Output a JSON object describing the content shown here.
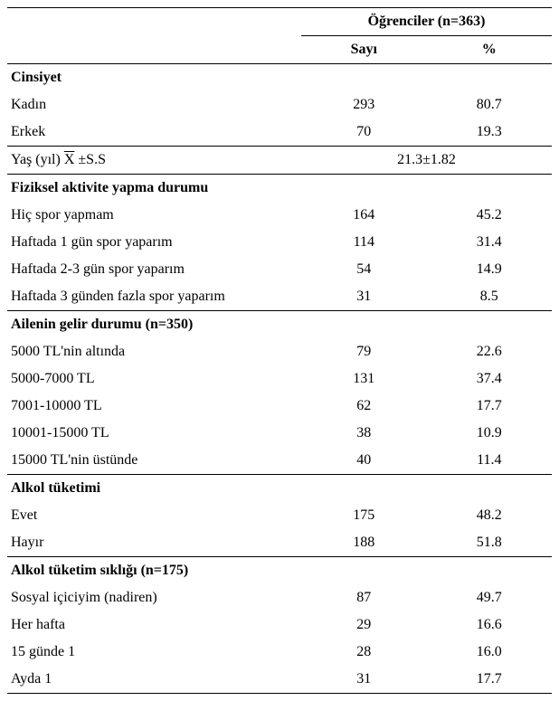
{
  "header": {
    "main": "Öğrenciler (n=363)",
    "col1": "Sayı",
    "col2": "%"
  },
  "sections": {
    "gender": {
      "title": "Cinsiyet",
      "rows": {
        "female": {
          "label": "Kadın",
          "count": "293",
          "pct": "80.7"
        },
        "male": {
          "label": "Erkek",
          "count": "70",
          "pct": "19.3"
        }
      }
    },
    "age": {
      "label_prefix": "Yaş (yıl) ",
      "label_symbol": "X",
      "label_suffix": " ±S.S",
      "value": "21.3±1.82"
    },
    "activity": {
      "title": "Fiziksel aktivite yapma durumu",
      "rows": {
        "r1": {
          "label": "Hiç spor yapmam",
          "count": "164",
          "pct": "45.2"
        },
        "r2": {
          "label": "Haftada 1 gün spor yaparım",
          "count": "114",
          "pct": "31.4"
        },
        "r3": {
          "label": "Haftada 2-3 gün spor yaparım",
          "count": "54",
          "pct": "14.9"
        },
        "r4": {
          "label": "Haftada 3 günden fazla spor yaparım",
          "count": "31",
          "pct": "8.5"
        }
      }
    },
    "income": {
      "title": "Ailenin gelir durumu (n=350)",
      "rows": {
        "r1": {
          "label": "5000 TL'nin altında",
          "count": "79",
          "pct": "22.6"
        },
        "r2": {
          "label": "5000-7000 TL",
          "count": "131",
          "pct": "37.4"
        },
        "r3": {
          "label": "7001-10000 TL",
          "count": "62",
          "pct": "17.7"
        },
        "r4": {
          "label": "10001-15000 TL",
          "count": "38",
          "pct": "10.9"
        },
        "r5": {
          "label": "15000 TL'nin üstünde",
          "count": "40",
          "pct": "11.4"
        }
      }
    },
    "alcohol": {
      "title": "Alkol tüketimi",
      "rows": {
        "r1": {
          "label": "Evet",
          "count": "175",
          "pct": "48.2"
        },
        "r2": {
          "label": "Hayır",
          "count": "188",
          "pct": "51.8"
        }
      }
    },
    "alcohol_freq": {
      "title": "Alkol tüketim sıklığı (n=175)",
      "rows": {
        "r1": {
          "label": "Sosyal içiciyim (nadiren)",
          "count": "87",
          "pct": "49.7"
        },
        "r2": {
          "label": "Her hafta",
          "count": "29",
          "pct": "16.6"
        },
        "r3": {
          "label": "15 günde 1",
          "count": "28",
          "pct": "16.0"
        },
        "r4": {
          "label": "Ayda 1",
          "count": "31",
          "pct": "17.7"
        }
      }
    }
  },
  "style": {
    "colwidths": {
      "label": "54%",
      "count": "23%",
      "pct": "23%"
    }
  }
}
